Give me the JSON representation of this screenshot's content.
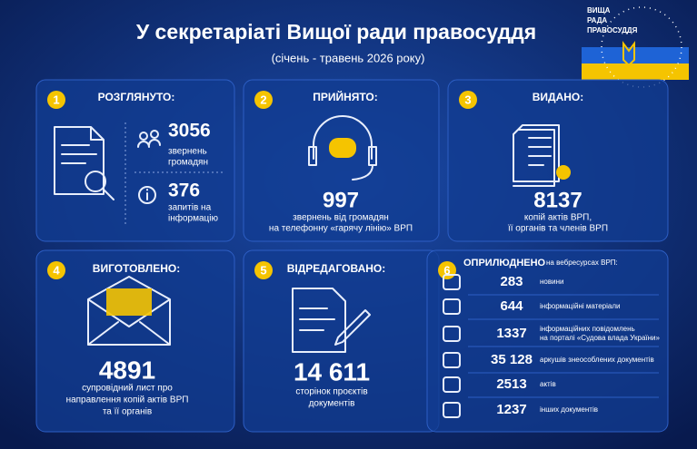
{
  "header": {
    "title": "У секретаріаті Вищої ради правосуддя",
    "subtitle": "(січень - травень 2026 року)",
    "logo": [
      "ВИЩА",
      "РАДА",
      "ПРАВОСУДДЯ"
    ]
  },
  "cards": [
    {
      "number": "1",
      "heading": "РОЗГЛЯНУТО:",
      "items": [
        {
          "value": "3056",
          "label": [
            "звернень",
            "громадян"
          ]
        },
        {
          "value": "376",
          "label": [
            "запитів на",
            "інформацію"
          ]
        }
      ]
    },
    {
      "number": "2",
      "heading": "ПРИЙНЯТО:",
      "items": [
        {
          "value": "997",
          "label": [
            "звернень від громадян",
            "на телефонну «гарячу лінію» ВРП"
          ]
        }
      ]
    },
    {
      "number": "3",
      "heading": "ВИДАНО:",
      "items": [
        {
          "value": "8137",
          "label": [
            "копій актів ВРП,",
            "її органів та членів ВРП"
          ]
        }
      ]
    },
    {
      "number": "4",
      "heading": "ВИГОТОВЛЕНО:",
      "items": [
        {
          "value": "4891",
          "label": [
            "супровідний лист про",
            "направлення копій актів ВРП",
            "та її органів"
          ]
        }
      ]
    },
    {
      "number": "5",
      "heading": "ВІДРЕДАГОВАНО:",
      "items": [
        {
          "value": "14 611",
          "label": [
            "сторінок проєктів",
            "документів"
          ]
        }
      ]
    },
    {
      "number": "6",
      "heading": "ОПРИЛЮДНЕНО",
      "heading_note": "на вебресурсах ВРП:",
      "items": [
        {
          "value": "283",
          "label": [
            "новини"
          ]
        },
        {
          "value": "644",
          "label": [
            "інформаційні матеріали"
          ]
        },
        {
          "value": "1337",
          "label": [
            "інформаційних повідомлень",
            "на порталі «Судова влада України»"
          ]
        },
        {
          "value": "35 128",
          "label": [
            "аркушів знеособлених документів"
          ]
        },
        {
          "value": "2513",
          "label": [
            "актів"
          ]
        },
        {
          "value": "1237",
          "label": [
            "інших документів"
          ]
        }
      ]
    }
  ]
}
